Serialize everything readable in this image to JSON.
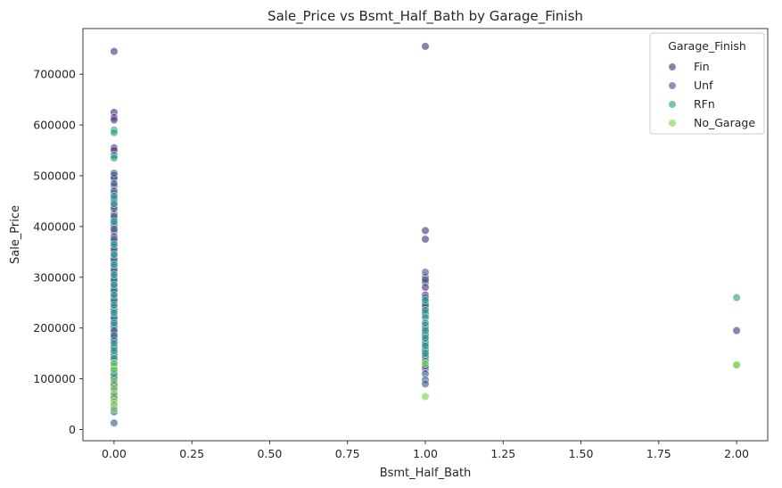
{
  "chart_data": {
    "type": "scatter",
    "title": "Sale_Price vs Bsmt_Half_Bath by Garage_Finish",
    "xlabel": "Bsmt_Half_Bath",
    "ylabel": "Sale_Price",
    "xlim": [
      -0.1,
      2.1
    ],
    "ylim": [
      -22000,
      790000
    ],
    "xticks": [
      0.0,
      0.25,
      0.5,
      0.75,
      1.0,
      1.25,
      1.5,
      1.75,
      2.0
    ],
    "xtick_labels": [
      "0.00",
      "0.25",
      "0.50",
      "0.75",
      "1.00",
      "1.25",
      "1.50",
      "1.75",
      "2.00"
    ],
    "yticks": [
      0,
      100000,
      200000,
      300000,
      400000,
      500000,
      600000,
      700000
    ],
    "ytick_labels": [
      "0",
      "100000",
      "200000",
      "300000",
      "400000",
      "500000",
      "600000",
      "700000"
    ],
    "grid": false,
    "legend": {
      "title": "Garage_Finish",
      "placement": "top-right"
    },
    "series": [
      {
        "name": "Fin",
        "color": "#46337e",
        "points": [
          [
            0,
            745000
          ],
          [
            0,
            625000
          ],
          [
            0,
            615000
          ],
          [
            0,
            610000
          ],
          [
            0,
            555000
          ],
          [
            0,
            550000
          ],
          [
            0,
            500000
          ],
          [
            0,
            495000
          ],
          [
            0,
            480000
          ],
          [
            0,
            465000
          ],
          [
            0,
            450000
          ],
          [
            0,
            440000
          ],
          [
            0,
            425000
          ],
          [
            0,
            415000
          ],
          [
            0,
            400000
          ],
          [
            0,
            390000
          ],
          [
            0,
            380000
          ],
          [
            0,
            370000
          ],
          [
            0,
            360000
          ],
          [
            0,
            350000
          ],
          [
            0,
            340000
          ],
          [
            0,
            330000
          ],
          [
            0,
            320000
          ],
          [
            0,
            310000
          ],
          [
            0,
            300000
          ],
          [
            0,
            290000
          ],
          [
            0,
            280000
          ],
          [
            0,
            270000
          ],
          [
            0,
            260000
          ],
          [
            0,
            250000
          ],
          [
            0,
            240000
          ],
          [
            0,
            225000
          ],
          [
            0,
            215000
          ],
          [
            0,
            200000
          ],
          [
            0,
            190000
          ],
          [
            0,
            180000
          ],
          [
            0,
            165000
          ],
          [
            0,
            150000
          ],
          [
            0,
            135000
          ],
          [
            0,
            120000
          ],
          [
            0,
            105000
          ],
          [
            0,
            85000
          ],
          [
            0,
            60000
          ],
          [
            0,
            35000
          ],
          [
            1,
            755000
          ],
          [
            1,
            392000
          ],
          [
            1,
            375000
          ],
          [
            1,
            300000
          ],
          [
            1,
            290000
          ],
          [
            1,
            280000
          ],
          [
            1,
            265000
          ],
          [
            1,
            250000
          ],
          [
            1,
            240000
          ],
          [
            1,
            225000
          ],
          [
            1,
            205000
          ],
          [
            1,
            190000
          ],
          [
            1,
            175000
          ],
          [
            1,
            160000
          ],
          [
            1,
            140000
          ],
          [
            1,
            120000
          ],
          [
            2,
            195000
          ]
        ]
      },
      {
        "name": "Unf",
        "color": "#365c8d",
        "points": [
          [
            0,
            540000
          ],
          [
            0,
            505000
          ],
          [
            0,
            485000
          ],
          [
            0,
            470000
          ],
          [
            0,
            455000
          ],
          [
            0,
            435000
          ],
          [
            0,
            420000
          ],
          [
            0,
            405000
          ],
          [
            0,
            395000
          ],
          [
            0,
            375000
          ],
          [
            0,
            355000
          ],
          [
            0,
            335000
          ],
          [
            0,
            315000
          ],
          [
            0,
            295000
          ],
          [
            0,
            275000
          ],
          [
            0,
            255000
          ],
          [
            0,
            235000
          ],
          [
            0,
            220000
          ],
          [
            0,
            205000
          ],
          [
            0,
            195000
          ],
          [
            0,
            185000
          ],
          [
            0,
            175000
          ],
          [
            0,
            160000
          ],
          [
            0,
            145000
          ],
          [
            0,
            130000
          ],
          [
            0,
            115000
          ],
          [
            0,
            100000
          ],
          [
            0,
            90000
          ],
          [
            0,
            75000
          ],
          [
            0,
            65000
          ],
          [
            0,
            45000
          ],
          [
            0,
            13000
          ],
          [
            1,
            310000
          ],
          [
            1,
            295000
          ],
          [
            1,
            260000
          ],
          [
            1,
            245000
          ],
          [
            1,
            230000
          ],
          [
            1,
            200000
          ],
          [
            1,
            185000
          ],
          [
            1,
            170000
          ],
          [
            1,
            155000
          ],
          [
            1,
            145000
          ],
          [
            1,
            125000
          ],
          [
            1,
            110000
          ],
          [
            1,
            98000
          ],
          [
            1,
            90000
          ]
        ]
      },
      {
        "name": "RFn",
        "color": "#1fa187",
        "points": [
          [
            0,
            590000
          ],
          [
            0,
            585000
          ],
          [
            0,
            535000
          ],
          [
            0,
            460000
          ],
          [
            0,
            445000
          ],
          [
            0,
            410000
          ],
          [
            0,
            365000
          ],
          [
            0,
            345000
          ],
          [
            0,
            325000
          ],
          [
            0,
            305000
          ],
          [
            0,
            285000
          ],
          [
            0,
            265000
          ],
          [
            0,
            245000
          ],
          [
            0,
            230000
          ],
          [
            0,
            210000
          ],
          [
            0,
            170000
          ],
          [
            0,
            155000
          ],
          [
            0,
            140000
          ],
          [
            0,
            125000
          ],
          [
            0,
            110000
          ],
          [
            1,
            255000
          ],
          [
            1,
            235000
          ],
          [
            1,
            220000
          ],
          [
            1,
            210000
          ],
          [
            1,
            195000
          ],
          [
            1,
            180000
          ],
          [
            1,
            165000
          ],
          [
            1,
            150000
          ],
          [
            1,
            135000
          ],
          [
            2,
            260000
          ]
        ]
      },
      {
        "name": "No_Garage",
        "color": "#7ad151",
        "points": [
          [
            0,
            130000
          ],
          [
            0,
            118000
          ],
          [
            0,
            95000
          ],
          [
            0,
            80000
          ],
          [
            0,
            70000
          ],
          [
            0,
            55000
          ],
          [
            0,
            50000
          ],
          [
            0,
            40000
          ],
          [
            1,
            130000
          ],
          [
            1,
            65000
          ],
          [
            2,
            128000
          ],
          [
            2,
            127000
          ]
        ]
      }
    ]
  }
}
